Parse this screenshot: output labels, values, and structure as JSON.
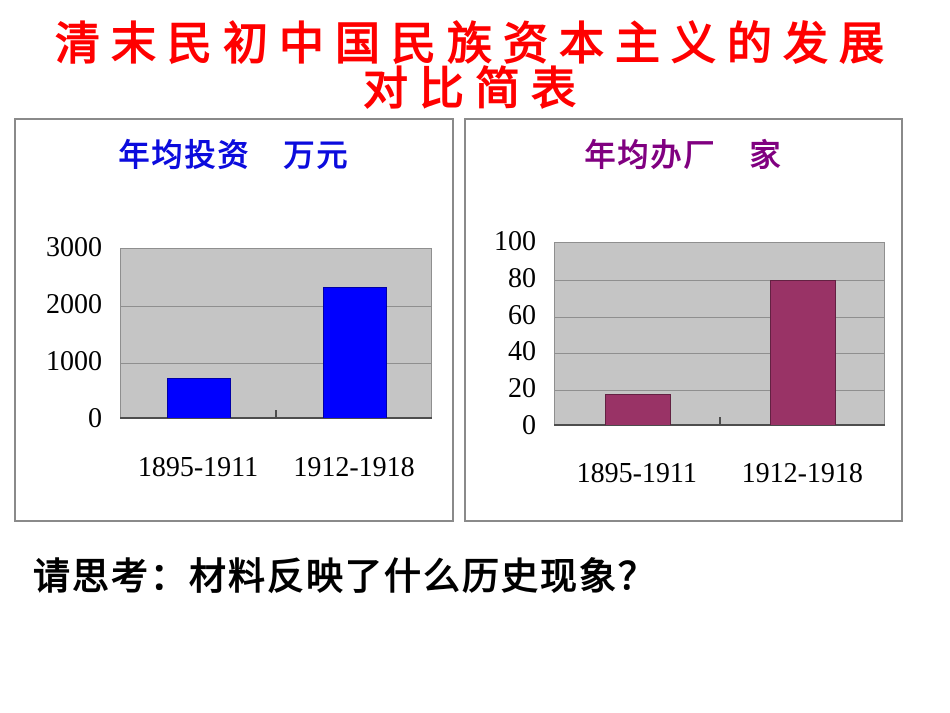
{
  "slide": {
    "title_lines": [
      "清末民初中国民族资本主义的发展",
      "对比简表"
    ],
    "title_color": "#ff0000",
    "question": "请思考：材料反映了什么历史现象？"
  },
  "chart_data": [
    {
      "type": "bar",
      "title": "年均投资　万元",
      "title_color": "#0b0bdd",
      "bar_color": "#0000ff",
      "plot_bg": "#c5c5c5",
      "categories": [
        "1895-1911",
        "1912-1918"
      ],
      "values": [
        700,
        2300
      ],
      "xlabel": "",
      "ylabel": "",
      "ylim": [
        0,
        3000
      ],
      "yticks": [
        0,
        1000,
        2000,
        3000
      ],
      "grid": true,
      "legend": "none"
    },
    {
      "type": "bar",
      "title": "年均办厂　家",
      "title_color": "#800080",
      "bar_color": "#993366",
      "plot_bg": "#c5c5c5",
      "categories": [
        "1895-1911",
        "1912-1918"
      ],
      "values": [
        17,
        79
      ],
      "xlabel": "",
      "ylabel": "",
      "ylim": [
        0,
        100
      ],
      "yticks": [
        0,
        20,
        40,
        60,
        80,
        100
      ],
      "grid": true,
      "legend": "none"
    }
  ]
}
